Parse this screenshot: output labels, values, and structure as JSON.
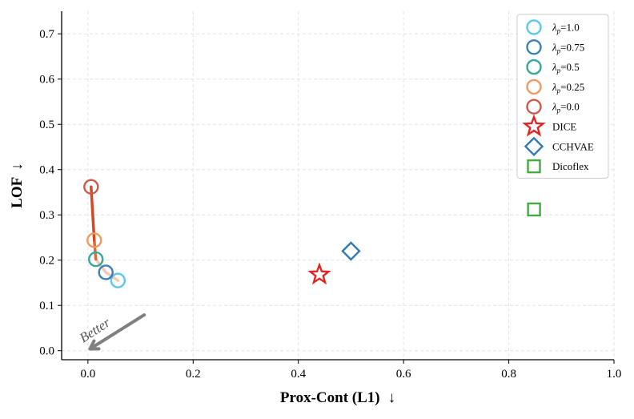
{
  "chart_data": {
    "type": "scatter",
    "xlabel": "Prox-Cont (L1)",
    "ylabel": "LOF",
    "xlabel_arrow": "↓",
    "ylabel_arrow": "↓",
    "xlim": [
      -0.05,
      1.0
    ],
    "ylim": [
      -0.02,
      0.75
    ],
    "xticks": [
      0.0,
      0.2,
      0.4,
      0.6,
      0.8,
      1.0
    ],
    "xtick_labels": [
      "0.0",
      "0.2",
      "0.4",
      "0.6",
      "0.8",
      "1.0"
    ],
    "yticks": [
      0.0,
      0.1,
      0.2,
      0.3,
      0.4,
      0.5,
      0.6,
      0.7
    ],
    "ytick_labels": [
      "0.0",
      "0.1",
      "0.2",
      "0.3",
      "0.4",
      "0.5",
      "0.6",
      "0.7"
    ],
    "grid": true,
    "legend_position": "top-right",
    "series": [
      {
        "label_prefix": "λ",
        "label_sub": "p",
        "label_suffix": "=1.0",
        "marker": "circle",
        "color": "#5bc8ec",
        "x": 0.057,
        "y": 0.155
      },
      {
        "label_prefix": "λ",
        "label_sub": "p",
        "label_suffix": "=0.75",
        "marker": "circle",
        "color": "#3a7fb8",
        "x": 0.034,
        "y": 0.173
      },
      {
        "label_prefix": "λ",
        "label_sub": "p",
        "label_suffix": "=0.5",
        "marker": "circle",
        "color": "#36a89a",
        "x": 0.015,
        "y": 0.202
      },
      {
        "label_prefix": "λ",
        "label_sub": "p",
        "label_suffix": "=0.25",
        "marker": "circle",
        "color": "#ee9a62",
        "x": 0.012,
        "y": 0.244
      },
      {
        "label_prefix": "λ",
        "label_sub": "p",
        "label_suffix": "=0.0",
        "marker": "circle",
        "color": "#cc5a4a",
        "x": 0.006,
        "y": 0.362
      },
      {
        "label": "DICE",
        "marker": "star",
        "color": "#e02525",
        "x": 0.44,
        "y": 0.168
      },
      {
        "label": "CCHVAE",
        "marker": "diamond",
        "color": "#2f78b4",
        "x": 0.5,
        "y": 0.22
      },
      {
        "label": "Dicoflex",
        "marker": "square",
        "color": "#44aa44",
        "x": 0.848,
        "y": 0.312
      }
    ],
    "path_segments": [
      {
        "color": "#f3c9ba",
        "from": [
          0.057,
          0.155
        ],
        "to": [
          0.034,
          0.173
        ]
      },
      {
        "color": "#f3c9ba",
        "from": [
          0.034,
          0.173
        ],
        "to": [
          0.015,
          0.202
        ]
      },
      {
        "color": "#e06a3c",
        "from": [
          0.015,
          0.202
        ],
        "to": [
          0.012,
          0.244
        ]
      },
      {
        "color": "#d04a2a",
        "from": [
          0.012,
          0.244
        ],
        "to": [
          0.006,
          0.362
        ]
      }
    ],
    "annotation": {
      "text": "Better",
      "arrow_from": [
        0.107,
        0.079
      ],
      "arrow_to": [
        0.004,
        0.004
      ],
      "arrow_color": "#808080"
    }
  }
}
